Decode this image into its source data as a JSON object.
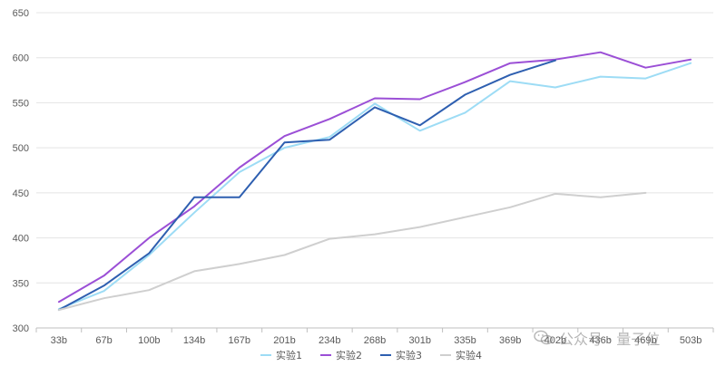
{
  "chart_data": {
    "type": "line",
    "categories": [
      "33b",
      "67b",
      "100b",
      "134b",
      "167b",
      "201b",
      "234b",
      "268b",
      "301b",
      "335b",
      "369b",
      "402b",
      "436b",
      "469b",
      "503b"
    ],
    "series": [
      {
        "name": "实验1",
        "color": "#9ddcf5",
        "values": [
          321,
          341,
          381,
          428,
          473,
          500,
          512,
          549,
          519,
          539,
          574,
          567,
          579,
          577,
          594
        ]
      },
      {
        "name": "实验2",
        "color": "#9b4fd6",
        "values": [
          329,
          358,
          400,
          435,
          478,
          513,
          532,
          555,
          554,
          573,
          594,
          598,
          606,
          589,
          598
        ]
      },
      {
        "name": "实验3",
        "color": "#2e5fb0",
        "values": [
          320,
          347,
          383,
          445,
          445,
          506,
          509,
          545,
          525,
          559,
          581,
          597,
          null,
          null,
          null
        ]
      },
      {
        "name": "实验4",
        "color": "#cfcfcf",
        "values": [
          320,
          333,
          342,
          363,
          371,
          381,
          399,
          404,
          412,
          423,
          434,
          449,
          445,
          450,
          null
        ]
      }
    ],
    "ylim": [
      300,
      650
    ],
    "yticks": [
      300,
      350,
      400,
      450,
      500,
      550,
      600,
      650
    ],
    "grid": true,
    "legend_position": "bottom-center",
    "title": "",
    "xlabel": "",
    "ylabel": ""
  },
  "watermark": {
    "text": "公众号 · 量子位",
    "icon": "wechat-icon"
  }
}
